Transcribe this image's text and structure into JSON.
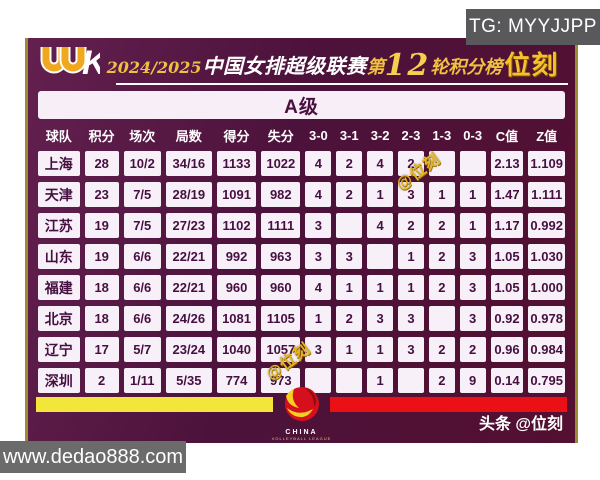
{
  "overlays": {
    "tg_badge": "TG: MYYJJPP",
    "website_badge": "www.dedao888.com",
    "watermark": "@位刻"
  },
  "header": {
    "logo": "UUK",
    "title": {
      "season": "2024/2025",
      "league": "中国女排超级联赛",
      "round_prefix": "第",
      "round_number": "12",
      "round_suffix": "轮积分榜",
      "brand": "位刻"
    }
  },
  "section": {
    "label": "A级"
  },
  "chart_data": {
    "type": "table",
    "title": "2024/2025中国女排超级联赛第12轮积分榜",
    "section": "A级",
    "columns": [
      "球队",
      "积分",
      "场次",
      "局数",
      "得分",
      "失分",
      "3-0",
      "3-1",
      "3-2",
      "2-3",
      "1-3",
      "0-3",
      "C值",
      "Z值"
    ],
    "rows": [
      [
        "上海",
        "28",
        "10/2",
        "34/16",
        "1133",
        "1022",
        "4",
        "2",
        "4",
        "2",
        "",
        "",
        "2.13",
        "1.109"
      ],
      [
        "天津",
        "23",
        "7/5",
        "28/19",
        "1091",
        "982",
        "4",
        "2",
        "1",
        "3",
        "1",
        "1",
        "1.47",
        "1.111"
      ],
      [
        "江苏",
        "19",
        "7/5",
        "27/23",
        "1102",
        "1111",
        "3",
        "",
        "4",
        "2",
        "2",
        "1",
        "1.17",
        "0.992"
      ],
      [
        "山东",
        "19",
        "6/6",
        "22/21",
        "992",
        "963",
        "3",
        "3",
        "",
        "1",
        "2",
        "3",
        "1.05",
        "1.030"
      ],
      [
        "福建",
        "18",
        "6/6",
        "22/21",
        "960",
        "960",
        "4",
        "1",
        "1",
        "1",
        "2",
        "3",
        "1.05",
        "1.000"
      ],
      [
        "北京",
        "18",
        "6/6",
        "24/26",
        "1081",
        "1105",
        "1",
        "2",
        "3",
        "3",
        "",
        "3",
        "0.92",
        "0.978"
      ],
      [
        "辽宁",
        "17",
        "5/7",
        "23/24",
        "1040",
        "1057",
        "3",
        "1",
        "1",
        "3",
        "2",
        "2",
        "0.96",
        "0.984"
      ],
      [
        "深圳",
        "2",
        "1/11",
        "5/35",
        "774",
        "973",
        "",
        "",
        "1",
        "",
        "2",
        "9",
        "0.14",
        "0.795"
      ]
    ]
  },
  "footer": {
    "logo_line1": "CHINA",
    "logo_line2": "VOLLEYBALL LEAGUE",
    "credit": "头条 @位刻"
  },
  "colors": {
    "panel_purple": "#4c123b",
    "gold_accent": "#f0c043",
    "cell_bg": "#f8f0f8",
    "cell_text": "#451040",
    "bar_yellow": "#f3e63b",
    "bar_red": "#ea1016",
    "badge_gray": "#59595b"
  }
}
